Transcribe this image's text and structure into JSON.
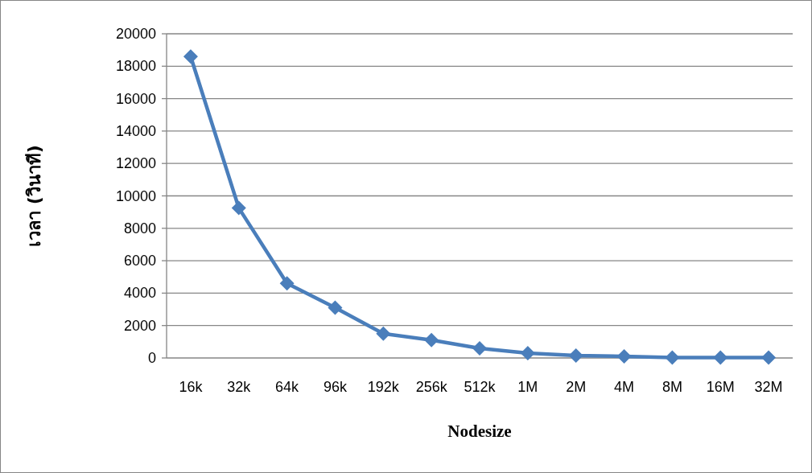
{
  "chart_data": {
    "type": "line",
    "xlabel": "Nodesize",
    "ylabel": "เวลา (วินาที)",
    "categories": [
      "16k",
      "32k",
      "64k",
      "96k",
      "192k",
      "256k",
      "512k",
      "1M",
      "2M",
      "4M",
      "8M",
      "16M",
      "32M"
    ],
    "values": [
      18600,
      9250,
      4600,
      3100,
      1500,
      1100,
      600,
      300,
      150,
      100,
      30,
      20,
      20
    ],
    "color": "#4a7ebb",
    "ylim": [
      0,
      20000
    ],
    "yticks": [
      0,
      2000,
      4000,
      6000,
      8000,
      10000,
      12000,
      14000,
      16000,
      18000,
      20000
    ],
    "grid": "y",
    "marker": "diamond",
    "line_style": "solid"
  }
}
